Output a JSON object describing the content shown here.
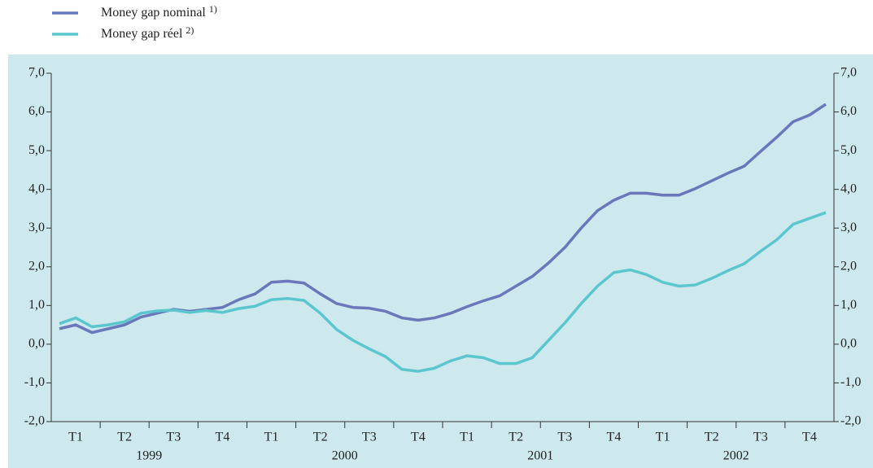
{
  "chart_data": {
    "type": "line",
    "categories": [
      null,
      "T1",
      null,
      null,
      "T2",
      null,
      null,
      "T3",
      null,
      null,
      "T4",
      null,
      null,
      "T1",
      null,
      null,
      "T2",
      null,
      null,
      "T3",
      null,
      null,
      "T4",
      null,
      null,
      "T1",
      null,
      null,
      "T2",
      null,
      null,
      "T3",
      null,
      null,
      "T4",
      null,
      null,
      "T1",
      null,
      null,
      "T2",
      null,
      null,
      "T3",
      null,
      null,
      "T4",
      null
    ],
    "years": [
      "1999",
      "2000",
      "2001",
      "2002"
    ],
    "series": [
      {
        "name": "Money gap nominal",
        "footnote": "1)",
        "color": "#6a78bb",
        "values": [
          0.4,
          0.5,
          0.3,
          0.4,
          0.5,
          0.7,
          0.8,
          0.9,
          0.85,
          0.9,
          0.95,
          1.15,
          1.3,
          1.6,
          1.63,
          1.58,
          1.3,
          1.05,
          0.95,
          0.93,
          0.85,
          0.68,
          0.62,
          0.68,
          0.8,
          0.97,
          1.12,
          1.25,
          1.5,
          1.75,
          2.1,
          2.5,
          3.0,
          3.45,
          3.72,
          3.9,
          3.9,
          3.85,
          3.85,
          4.02,
          4.22,
          4.42,
          4.6,
          4.98,
          5.35,
          5.75,
          5.92,
          6.2
        ]
      },
      {
        "name": "Money gap réel",
        "footnote": "2)",
        "color": "#5cc6cf",
        "values": [
          0.53,
          0.68,
          0.45,
          0.5,
          0.58,
          0.8,
          0.86,
          0.88,
          0.82,
          0.87,
          0.82,
          0.92,
          0.98,
          1.15,
          1.18,
          1.13,
          0.8,
          0.38,
          0.1,
          -0.12,
          -0.32,
          -0.65,
          -0.7,
          -0.62,
          -0.43,
          -0.3,
          -0.35,
          -0.5,
          -0.5,
          -0.35,
          0.1,
          0.55,
          1.05,
          1.5,
          1.85,
          1.92,
          1.8,
          1.6,
          1.5,
          1.53,
          1.7,
          1.9,
          2.08,
          2.4,
          2.7,
          3.1,
          3.25,
          3.4
        ]
      }
    ],
    "ylim": [
      -2,
      7
    ],
    "yticks": [
      {
        "value": -2,
        "label": "-2,0"
      },
      {
        "value": -1,
        "label": "-1,0"
      },
      {
        "value": 0,
        "label": "0,0"
      },
      {
        "value": 1,
        "label": "1,0"
      },
      {
        "value": 2,
        "label": "2,0"
      },
      {
        "value": 3,
        "label": "3,0"
      },
      {
        "value": 4,
        "label": "4,0"
      },
      {
        "value": 5,
        "label": "5,0"
      },
      {
        "value": 6,
        "label": "6,0"
      },
      {
        "value": 7,
        "label": "7,0"
      }
    ],
    "background": "#cde9ee"
  }
}
